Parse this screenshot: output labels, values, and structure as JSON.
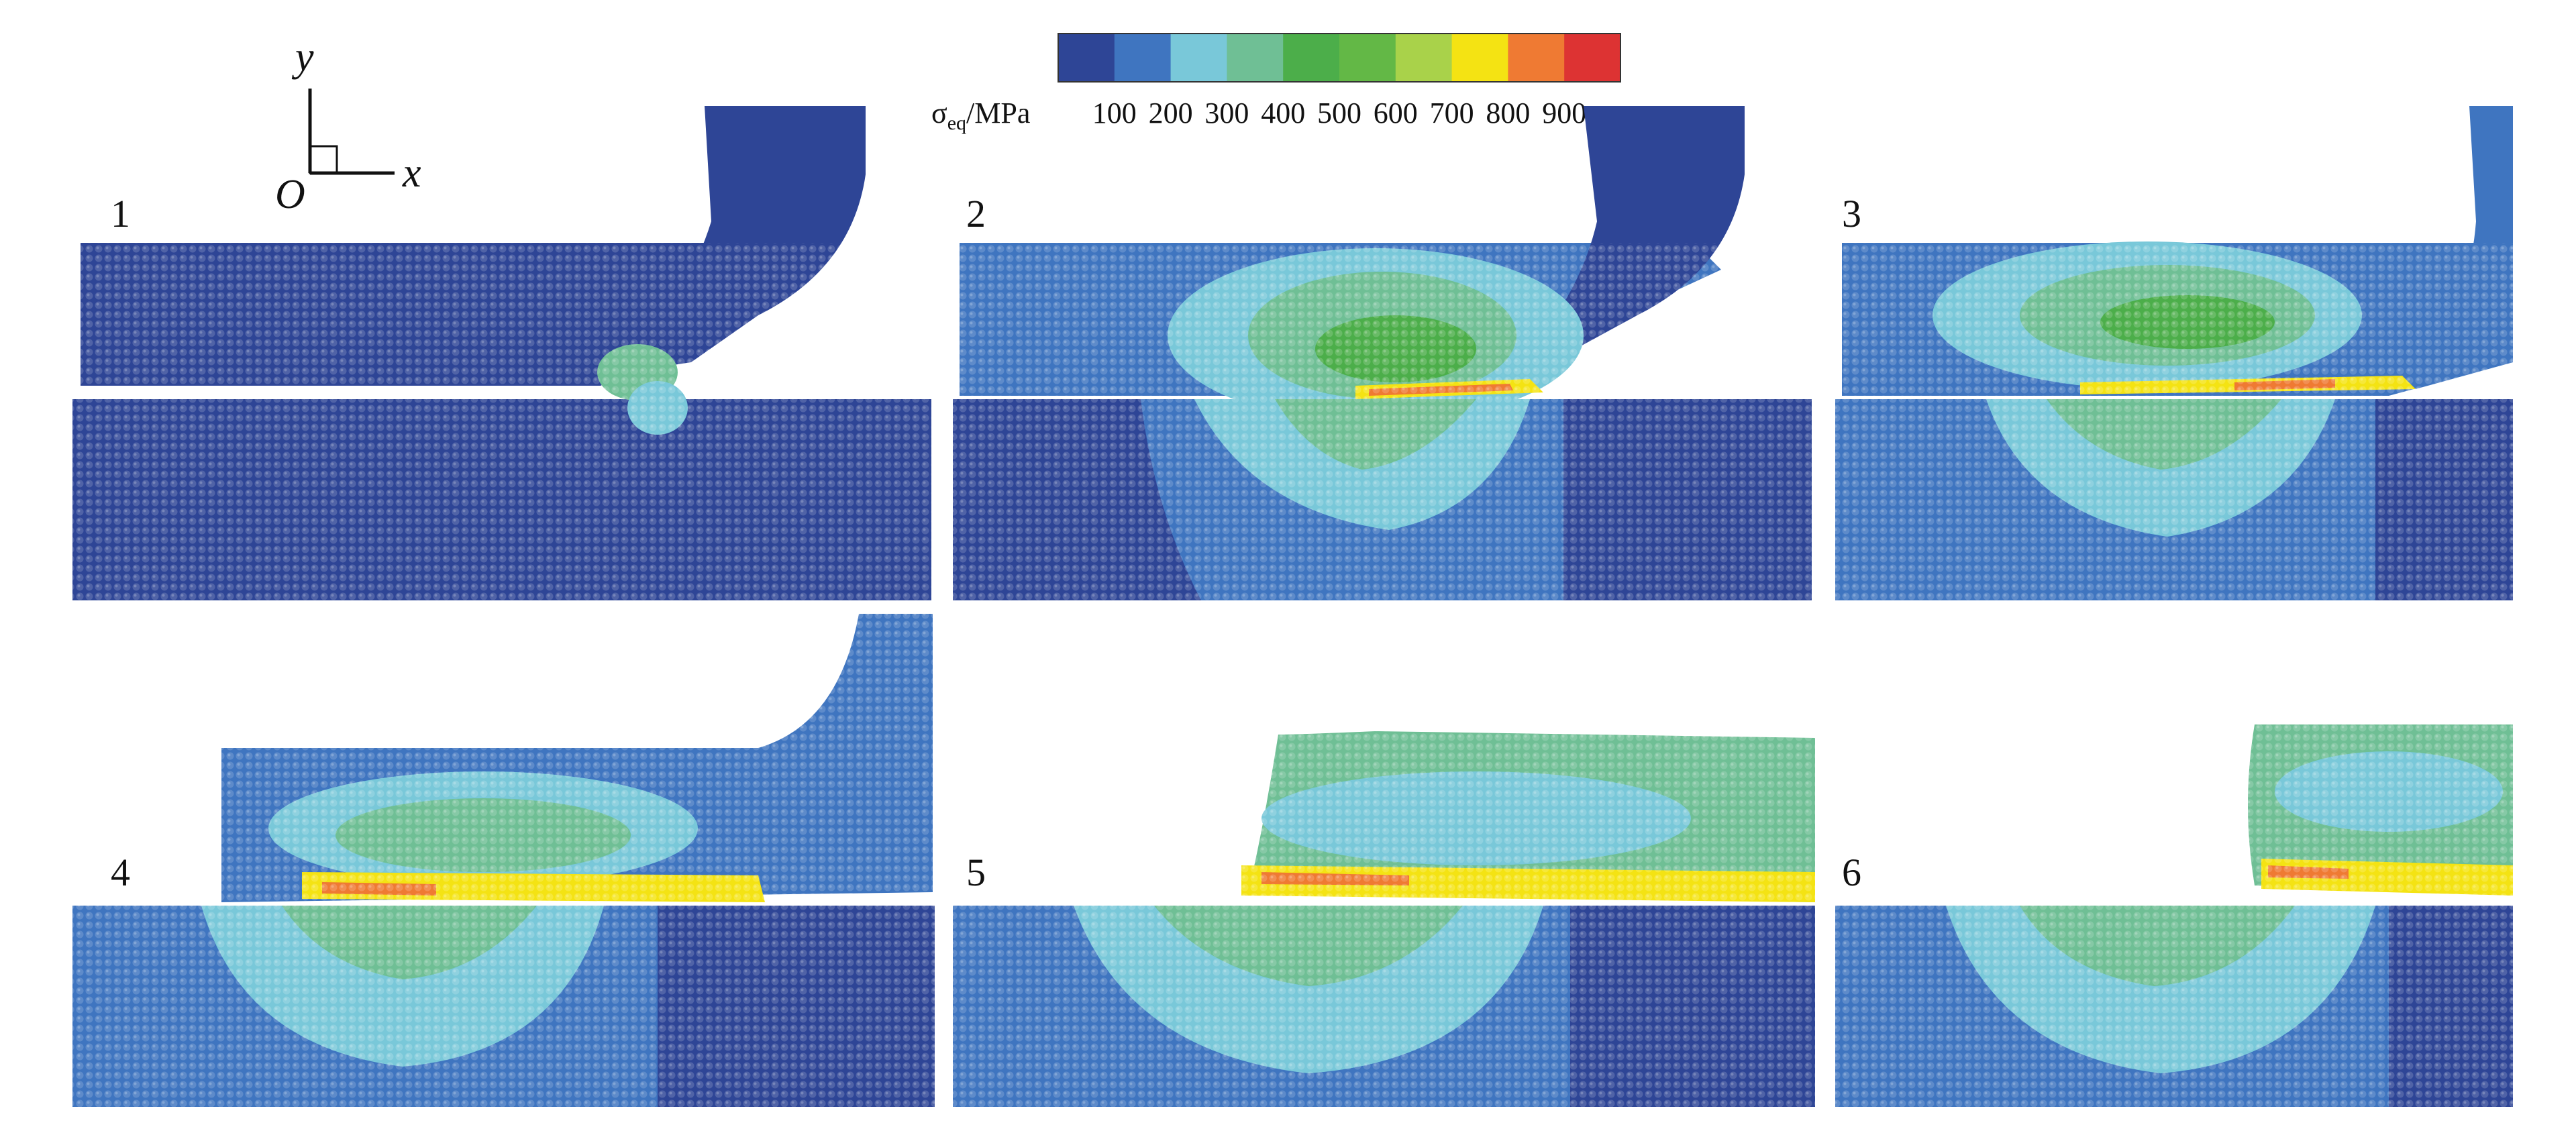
{
  "colorbar": {
    "label_prefix": "σ",
    "label_sub": "eq",
    "label_unit": "/MPa",
    "ticks": [
      "100",
      "200",
      "300",
      "400",
      "500",
      "600",
      "700",
      "800",
      "900"
    ],
    "colors": [
      "#2e4596",
      "#3f75c0",
      "#79c8d9",
      "#6fbf95",
      "#4cae4a",
      "#63b846",
      "#a9d24a",
      "#f4e313",
      "#ef7a33",
      "#dd3333"
    ]
  },
  "axes": {
    "y_label": "y",
    "x_label": "x",
    "origin_label": "O"
  },
  "panels": [
    {
      "label": "1",
      "stage": 1
    },
    {
      "label": "2",
      "stage": 2
    },
    {
      "label": "3",
      "stage": 3
    },
    {
      "label": "4",
      "stage": 4
    },
    {
      "label": "5",
      "stage": 5
    },
    {
      "label": "6",
      "stage": 6
    }
  ]
}
